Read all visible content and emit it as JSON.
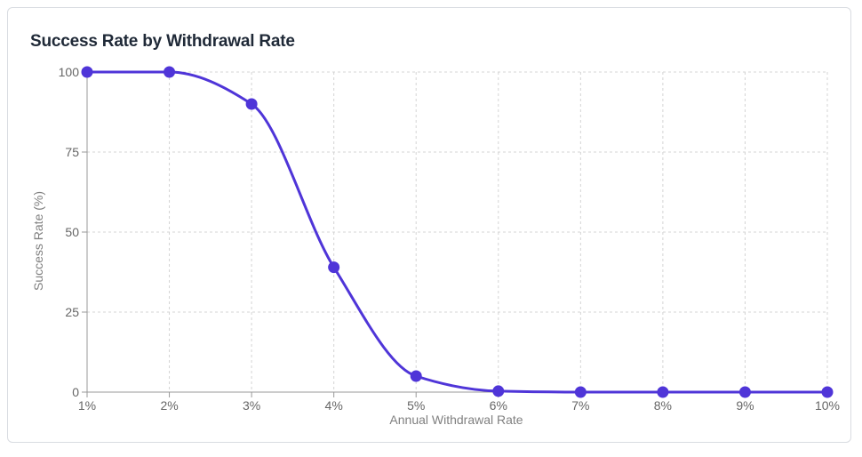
{
  "chart_data": {
    "type": "line",
    "title": "Success Rate by Withdrawal Rate",
    "xlabel": "Annual Withdrawal Rate",
    "ylabel": "Success Rate (%)",
    "categories": [
      "1%",
      "2%",
      "3%",
      "4%",
      "5%",
      "6%",
      "7%",
      "8%",
      "9%",
      "10%"
    ],
    "series": [
      {
        "values": [
          100,
          100,
          90,
          39,
          5,
          0.3,
          0,
          0,
          0,
          0
        ],
        "color": "#4f35d8"
      }
    ],
    "ylim": [
      0,
      100
    ],
    "yticks": [
      0,
      25,
      50,
      75,
      100
    ],
    "grid": true,
    "grid_style": "dashed",
    "legend": "none"
  }
}
